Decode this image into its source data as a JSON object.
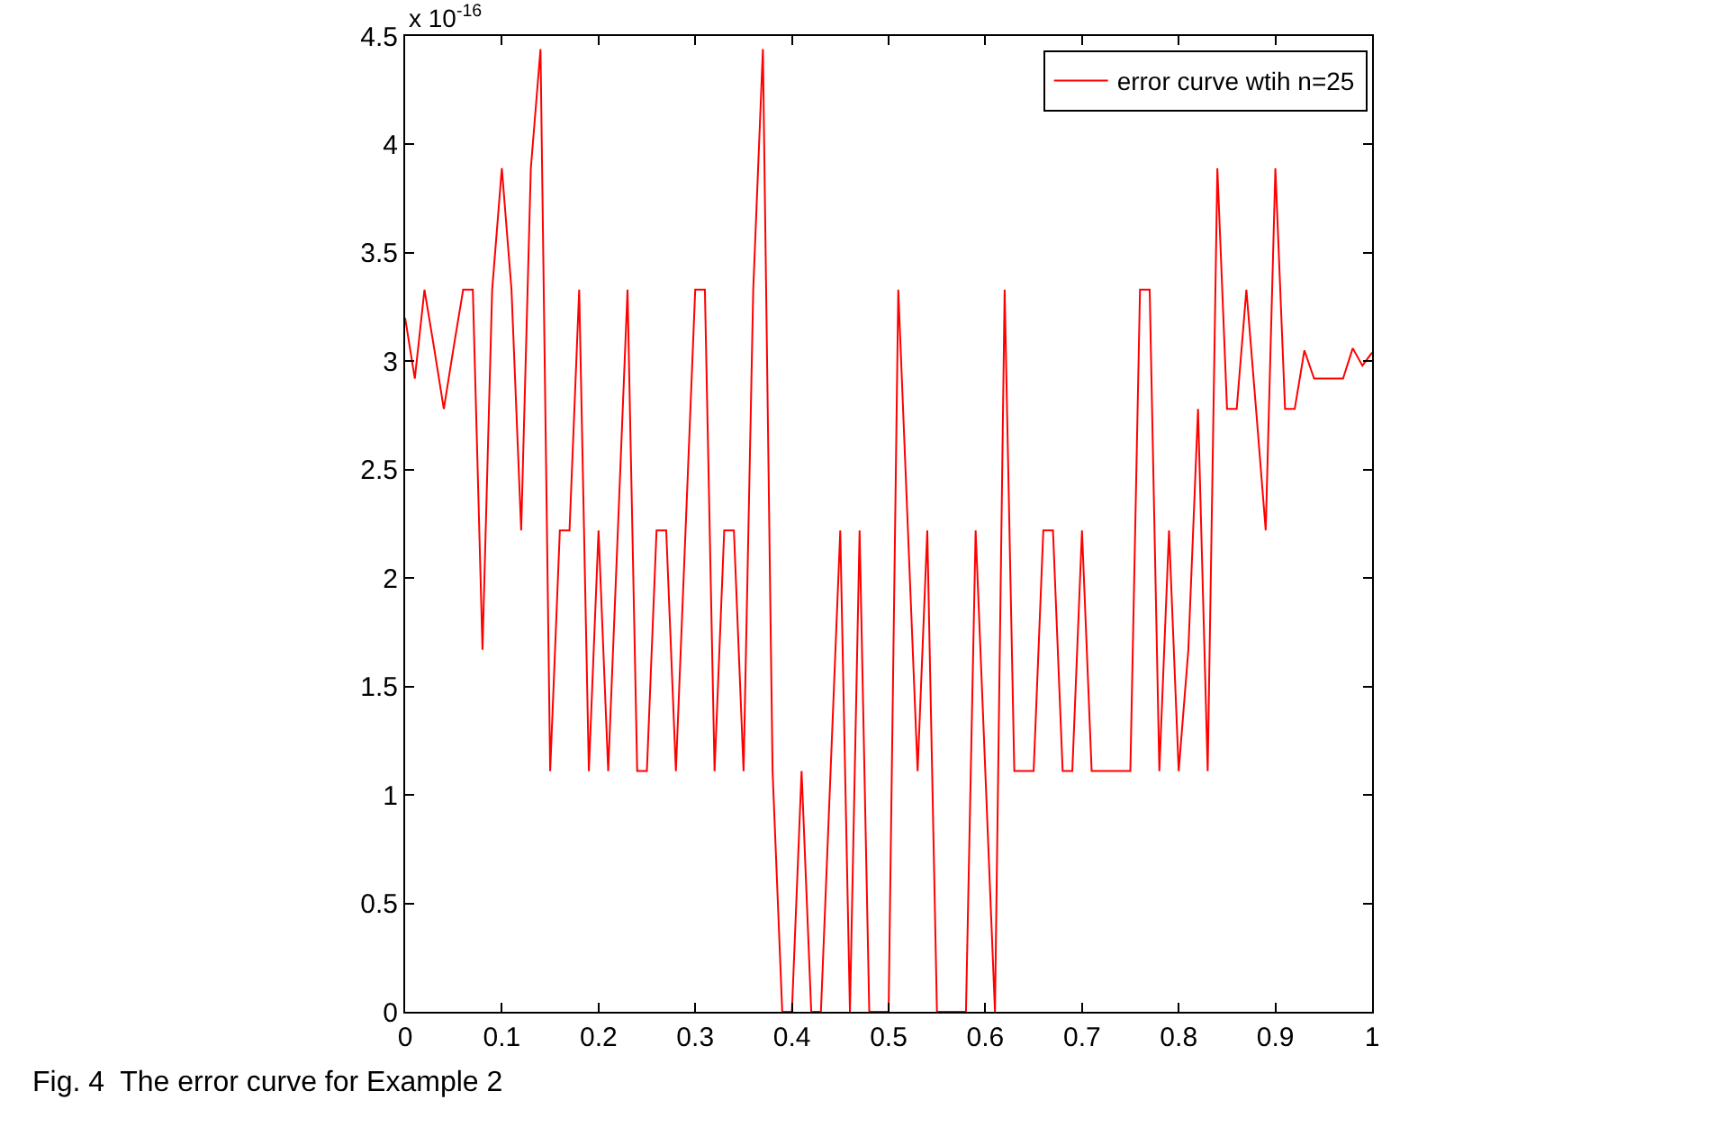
{
  "chart_data": {
    "type": "line",
    "x": [
      0,
      0.01,
      0.02,
      0.03,
      0.04,
      0.05,
      0.06,
      0.07,
      0.08,
      0.09,
      0.1,
      0.11,
      0.12,
      0.13,
      0.14,
      0.15,
      0.16,
      0.17,
      0.18,
      0.19,
      0.2,
      0.21,
      0.22,
      0.23,
      0.24,
      0.25,
      0.26,
      0.27,
      0.28,
      0.29,
      0.3,
      0.31,
      0.32,
      0.33,
      0.34,
      0.35,
      0.36,
      0.37,
      0.38,
      0.39,
      0.4,
      0.41,
      0.42,
      0.43,
      0.44,
      0.45,
      0.46,
      0.47,
      0.48,
      0.49,
      0.5,
      0.51,
      0.52,
      0.53,
      0.54,
      0.55,
      0.56,
      0.57,
      0.58,
      0.59,
      0.6,
      0.61,
      0.62,
      0.63,
      0.64,
      0.65,
      0.66,
      0.67,
      0.68,
      0.69,
      0.7,
      0.71,
      0.72,
      0.73,
      0.74,
      0.75,
      0.76,
      0.77,
      0.78,
      0.79,
      0.8,
      0.81,
      0.82,
      0.83,
      0.84,
      0.85,
      0.86,
      0.87,
      0.88,
      0.89,
      0.9,
      0.91,
      0.92,
      0.93,
      0.94,
      0.95,
      0.96,
      0.97,
      0.98,
      0.99,
      1
    ],
    "series": [
      {
        "name": "error curve wtih n=25",
        "color": "#ff0000",
        "values": [
          3.2,
          2.92,
          3.33,
          3.06,
          2.78,
          3.06,
          3.33,
          3.33,
          1.67,
          3.33,
          3.89,
          3.33,
          2.22,
          3.89,
          4.44,
          1.11,
          2.22,
          2.22,
          3.33,
          1.11,
          2.22,
          1.11,
          2.22,
          3.33,
          1.11,
          1.11,
          2.22,
          2.22,
          1.11,
          2.22,
          3.33,
          3.33,
          1.11,
          2.22,
          2.22,
          1.11,
          3.33,
          4.44,
          1.11,
          0,
          0,
          1.11,
          0,
          0,
          1.11,
          2.22,
          0,
          2.22,
          0,
          0,
          0,
          3.33,
          2.22,
          1.11,
          2.22,
          0,
          0,
          0,
          0,
          2.22,
          1.11,
          0,
          3.33,
          1.11,
          1.11,
          1.11,
          2.22,
          2.22,
          1.11,
          1.11,
          2.22,
          1.11,
          1.11,
          1.11,
          1.11,
          1.11,
          3.33,
          3.33,
          1.11,
          2.22,
          1.11,
          1.67,
          2.78,
          1.11,
          3.89,
          2.78,
          2.78,
          3.33,
          2.78,
          2.22,
          3.89,
          2.78,
          2.78,
          3.05,
          2.92,
          2.92,
          2.92,
          2.92,
          3.06,
          2.98,
          3.04
        ]
      }
    ],
    "xlim": [
      0,
      1
    ],
    "xticks": [
      0,
      0.1,
      0.2,
      0.3,
      0.4,
      0.5,
      0.6,
      0.7,
      0.8,
      0.9,
      1
    ],
    "ylim": [
      0,
      4.5
    ],
    "yticks": [
      0,
      0.5,
      1,
      1.5,
      2,
      2.5,
      3,
      3.5,
      4,
      4.5
    ],
    "grid": false,
    "legend": "top right",
    "marker": "none",
    "line_style": "solid",
    "annotations": [
      "x 10$^{-16}$",
      "Fig. 4  The error curve for Example 2"
    ]
  }
}
